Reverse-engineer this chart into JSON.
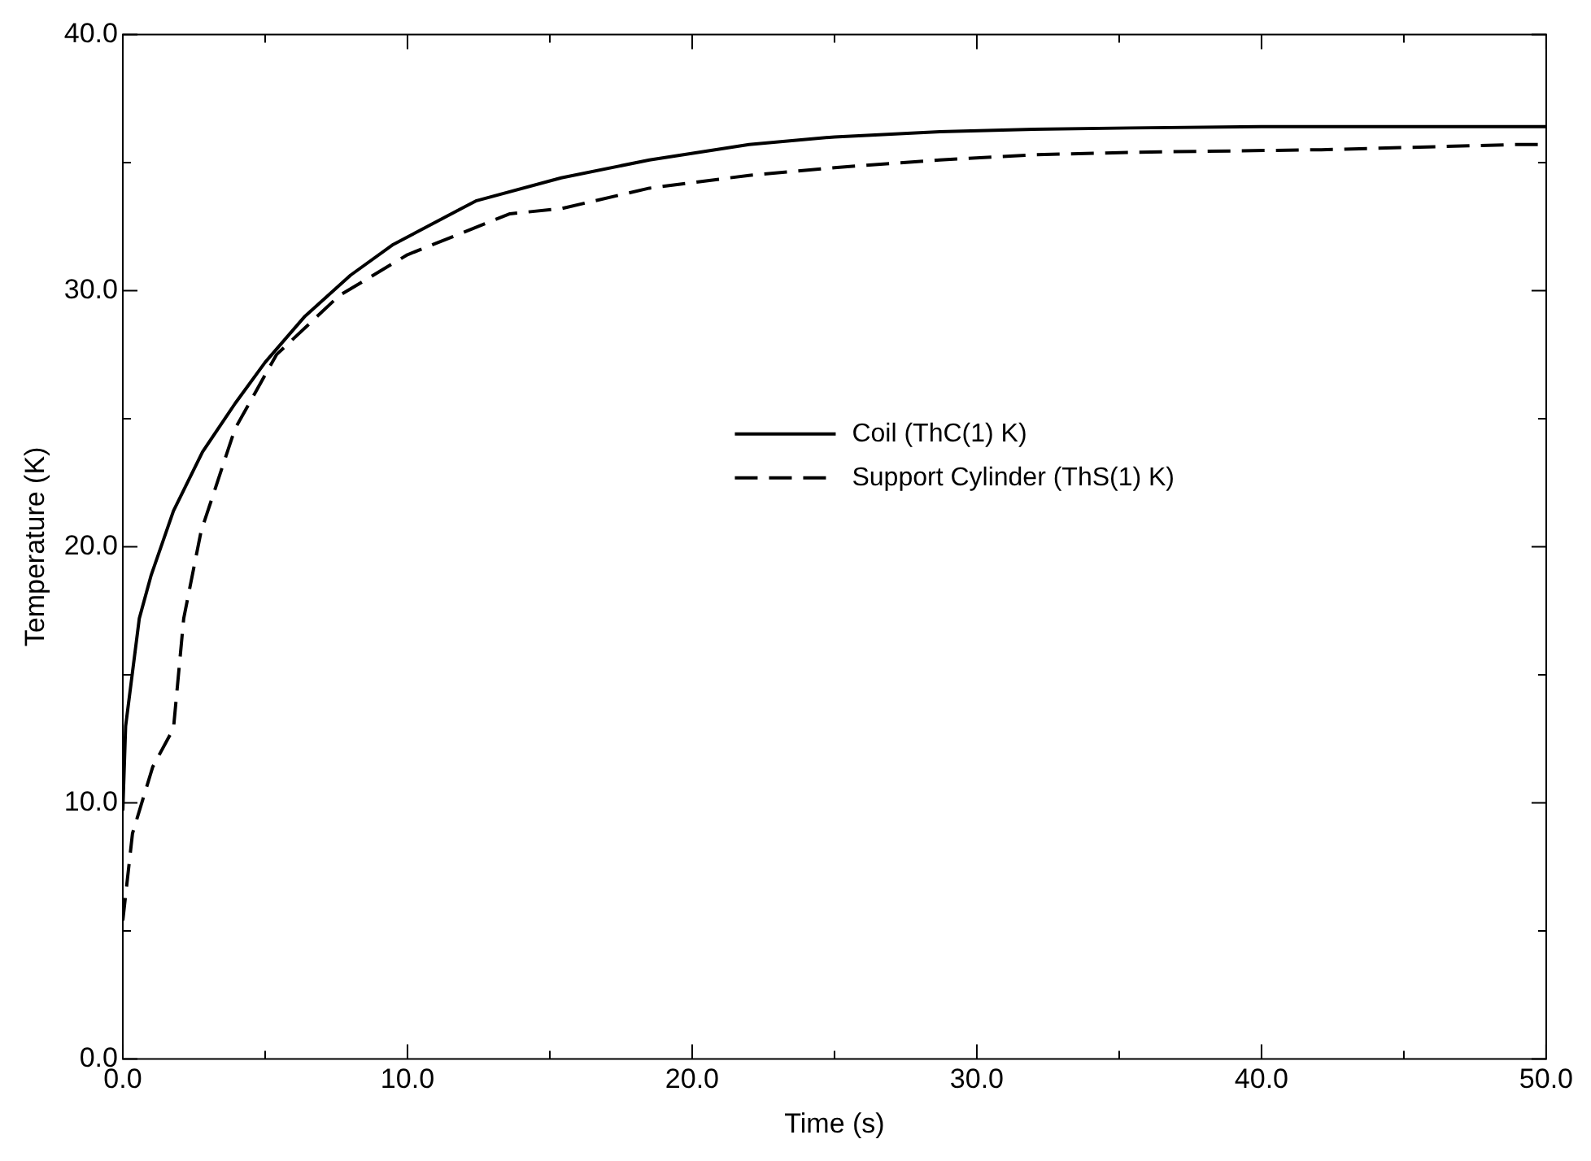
{
  "chart_data": {
    "type": "line",
    "xlabel": "Time (s)",
    "ylabel": "Temperature (K)",
    "xlim": [
      0,
      50
    ],
    "ylim": [
      0,
      40
    ],
    "xticks": [
      {
        "value": 0,
        "label": "0.0"
      },
      {
        "value": 5,
        "label": null
      },
      {
        "value": 10,
        "label": "10.0"
      },
      {
        "value": 15,
        "label": null
      },
      {
        "value": 20,
        "label": "20.0"
      },
      {
        "value": 25,
        "label": null
      },
      {
        "value": 30,
        "label": "30.0"
      },
      {
        "value": 35,
        "label": null
      },
      {
        "value": 40,
        "label": "40.0"
      },
      {
        "value": 45,
        "label": null
      },
      {
        "value": 50,
        "label": "50.0"
      }
    ],
    "yticks": [
      {
        "value": 0,
        "label": "0.0"
      },
      {
        "value": 5,
        "label": null
      },
      {
        "value": 10,
        "label": "10.0"
      },
      {
        "value": 15,
        "label": null
      },
      {
        "value": 20,
        "label": "20.0"
      },
      {
        "value": 25,
        "label": null
      },
      {
        "value": 30,
        "label": "30.0"
      },
      {
        "value": 35,
        "label": null
      },
      {
        "value": 40,
        "label": "40.0"
      }
    ],
    "grid": false,
    "legend": "center",
    "marker": "none",
    "series": [
      {
        "name": "Coil (ThC(1) K)",
        "color": "#000000",
        "line_style": "solid",
        "x": [
          0,
          0.1,
          0.58,
          1.0,
          1.78,
          2.8,
          3.95,
          5.0,
          6.4,
          8.0,
          9.5,
          12.4,
          15.4,
          18.5,
          22,
          25,
          28.7,
          32,
          35.4,
          40,
          45,
          50
        ],
        "values": [
          9.7,
          13.0,
          17.2,
          18.9,
          21.4,
          23.7,
          25.6,
          27.2,
          29.0,
          30.6,
          31.8,
          33.5,
          34.4,
          35.1,
          35.7,
          36.0,
          36.2,
          36.3,
          36.35,
          36.4,
          36.4,
          36.4
        ]
      },
      {
        "name": "Support Cylinder (ThS(1) K)",
        "color": "#000000",
        "line_style": "dashed",
        "x": [
          0,
          0.34,
          1.05,
          1.78,
          2.14,
          2.75,
          3.94,
          5.4,
          7.6,
          10,
          13.6,
          15.4,
          18.5,
          22,
          25,
          28.7,
          32,
          35.4,
          42.1,
          48.8,
          50
        ],
        "values": [
          5.4,
          8.8,
          11.4,
          12.9,
          17.2,
          20.6,
          24.6,
          27.5,
          29.8,
          31.4,
          33.0,
          33.2,
          34.0,
          34.5,
          34.8,
          35.1,
          35.3,
          35.4,
          35.5,
          35.7,
          35.7
        ]
      }
    ]
  }
}
